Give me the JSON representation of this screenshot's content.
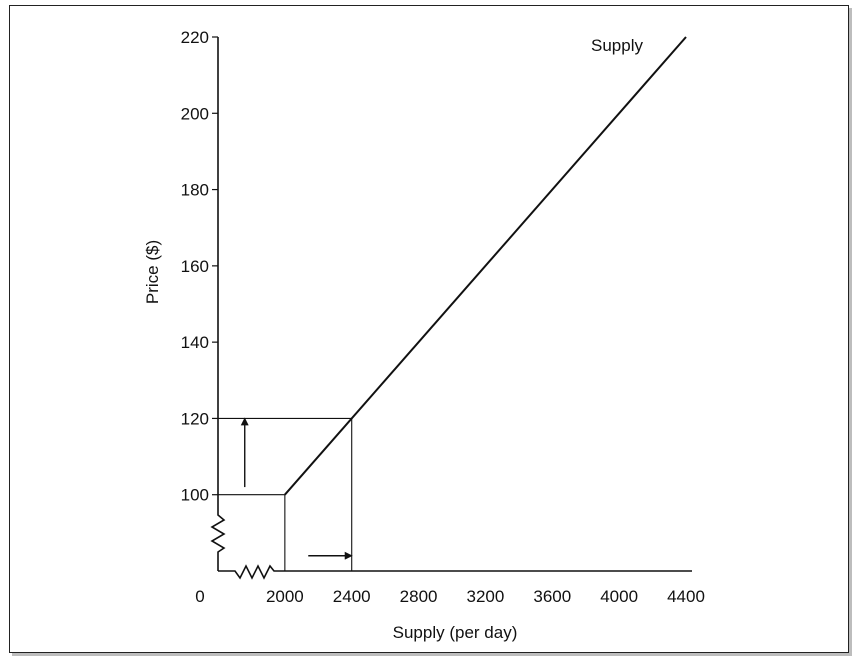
{
  "chart_data": {
    "type": "line",
    "title": "",
    "xlabel": "Supply (per day)",
    "ylabel": "Price ($)",
    "xlim": [
      1600,
      4400
    ],
    "ylim": [
      80,
      220
    ],
    "origin_label": "0",
    "x_ticks": [
      2000,
      2400,
      2800,
      3200,
      3600,
      4000,
      4400
    ],
    "y_ticks": [
      100,
      120,
      140,
      160,
      180,
      200,
      220
    ],
    "axis_break": true,
    "grid": false,
    "series": [
      {
        "name": "Supply",
        "x": [
          2000,
          4400
        ],
        "y": [
          100,
          220
        ]
      }
    ],
    "reference_points": [
      {
        "x": 2000,
        "y": 100
      },
      {
        "x": 2400,
        "y": 120
      }
    ],
    "arrows": [
      {
        "direction": "up",
        "from_y": 102,
        "to_y": 120,
        "at_x": 1760
      },
      {
        "direction": "right",
        "from_x": 2140,
        "to_x": 2400,
        "at_y": 84
      }
    ],
    "line_color": "#111111"
  }
}
